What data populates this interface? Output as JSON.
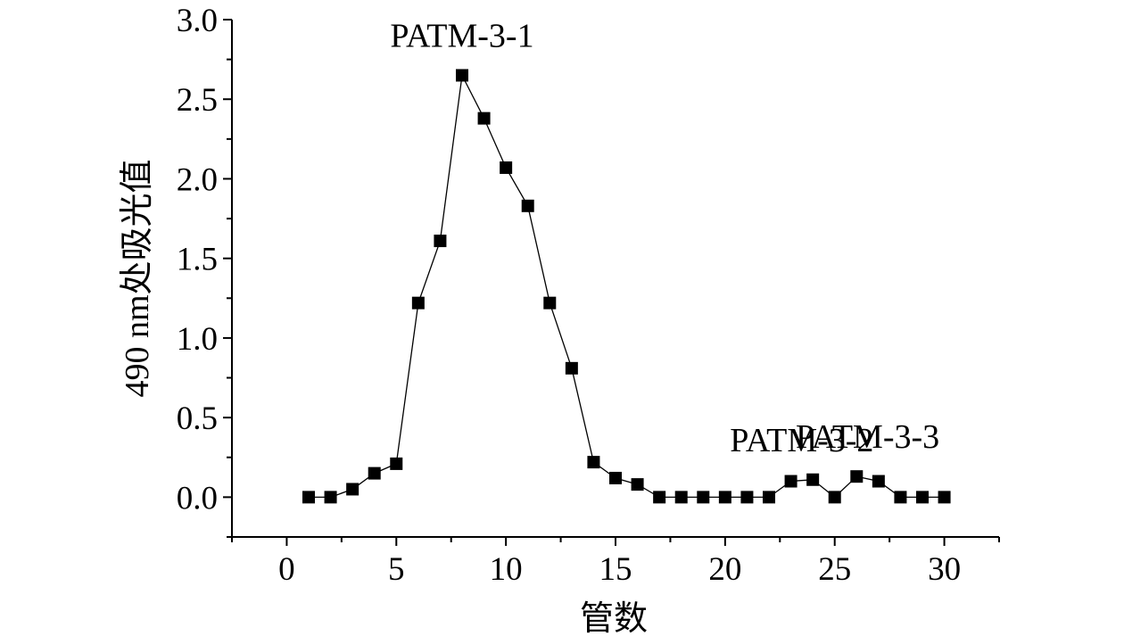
{
  "chart_data": {
    "type": "line",
    "title": "",
    "xlabel": "管数",
    "ylabel": "490 nm处吸光值",
    "xlim": [
      -2.5,
      32.5
    ],
    "ylim": [
      -0.25,
      3.0
    ],
    "x_ticks": [
      0,
      5,
      10,
      15,
      20,
      25,
      30
    ],
    "y_ticks": [
      0.0,
      0.5,
      1.0,
      1.5,
      2.0,
      2.5,
      3.0
    ],
    "x_tick_labels": [
      "0",
      "5",
      "10",
      "15",
      "20",
      "25",
      "30"
    ],
    "y_tick_labels": [
      "0.0",
      "0.5",
      "1.0",
      "1.5",
      "2.0",
      "2.5",
      "3.0"
    ],
    "grid": false,
    "legend": "none",
    "marker": "square",
    "colors": {
      "line": "#000000",
      "marker": "#000000"
    },
    "series": [
      {
        "x": [
          1,
          2,
          3,
          4,
          5,
          6,
          7,
          8,
          9,
          10,
          11,
          12,
          13,
          14,
          15,
          16,
          17,
          18,
          19,
          20,
          21,
          22,
          23,
          24,
          25,
          26,
          27,
          28,
          29,
          30
        ],
        "y": [
          0.0,
          0.0,
          0.05,
          0.15,
          0.21,
          1.22,
          1.61,
          2.65,
          2.38,
          2.07,
          1.83,
          1.22,
          0.81,
          0.22,
          0.12,
          0.08,
          0.0,
          0.0,
          0.0,
          0.0,
          0.0,
          0.0,
          0.1,
          0.11,
          0.0,
          0.13,
          0.1,
          0.0,
          0.0,
          0.0
        ]
      }
    ],
    "annotations": [
      {
        "text": "PATM-3-1",
        "x": 8,
        "y": 2.65
      },
      {
        "text": "PATM-3-2",
        "x": 23.5,
        "y": 0.11
      },
      {
        "text": "PATM-3-3",
        "x": 26.5,
        "y": 0.13
      }
    ]
  }
}
